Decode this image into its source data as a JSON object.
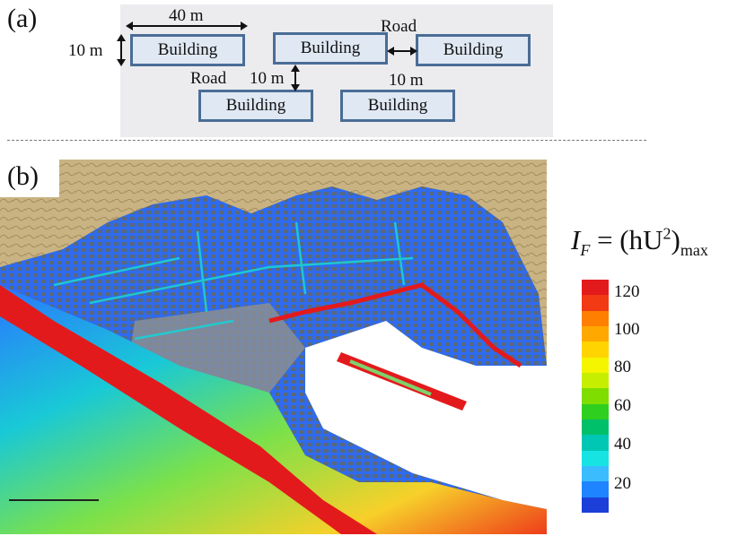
{
  "panel_a": {
    "tag": "(a)",
    "buildings": [
      "Building",
      "Building",
      "Building",
      "Building",
      "Building"
    ],
    "dim_width": "40 m",
    "dim_height_left": "10 m",
    "dim_gap_vertical": "10 m",
    "dim_gap_horizontal": "10 m",
    "road_top": "Road",
    "road_left": "Road"
  },
  "panel_b": {
    "tag": "(b)",
    "formula": {
      "lhs": "I",
      "sub": "F",
      "eq": " = (hU",
      "sup": "2",
      "rhs": ")",
      "rhs_sub": "max"
    },
    "colorbar": {
      "ticks": [
        "120",
        "100",
        "80",
        "60",
        "40",
        "20"
      ],
      "colors": [
        "#e31a1c",
        "#f23a14",
        "#ff7f00",
        "#ffa800",
        "#ffd400",
        "#f5f500",
        "#c6ee00",
        "#7fdd00",
        "#2fcf1f",
        "#00c06a",
        "#00c7b4",
        "#18e3e3",
        "#3bbcff",
        "#1f84ff",
        "#1b3fd8"
      ]
    }
  }
}
